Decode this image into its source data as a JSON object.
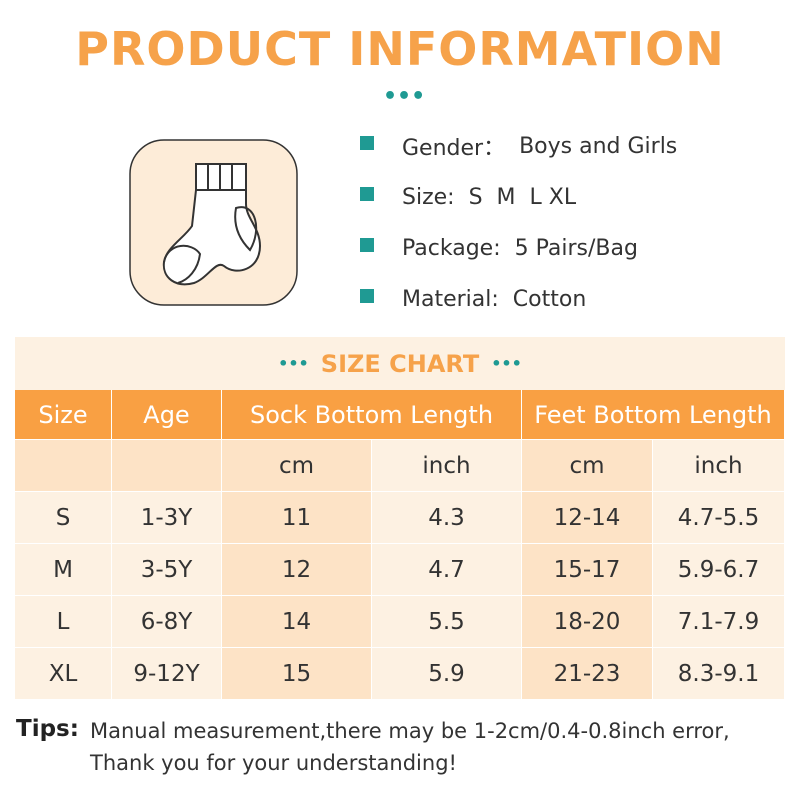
{
  "header": {
    "title": "PRODUCT INFORMATION"
  },
  "info": [
    {
      "label": "Gender：",
      "value": "Boys and Girls"
    },
    {
      "label": "Size:",
      "value": "S  M  L XL"
    },
    {
      "label": "Package:",
      "value": "5 Pairs/Bag"
    },
    {
      "label": "Material:",
      "value": "Cotton"
    }
  ],
  "table": {
    "title": "SIZE CHART",
    "headers": [
      "Size",
      "Age",
      "Sock Bottom Length",
      "Feet Bottom Length"
    ],
    "units": [
      "cm",
      "inch",
      "cm",
      "inch"
    ],
    "rows": [
      [
        "S",
        "1-3Y",
        11,
        4.3,
        "12-14",
        "4.7-5.5"
      ],
      [
        "M",
        "3-5Y",
        12,
        4.7,
        "15-17",
        "5.9-6.7"
      ],
      [
        "L",
        "6-8Y",
        14,
        5.5,
        "18-20",
        "7.1-7.9"
      ],
      [
        "XL",
        "9-12Y",
        15,
        5.9,
        "21-23",
        "8.3-9.1"
      ]
    ]
  },
  "tips": {
    "label": "Tips:",
    "lines": [
      "Manual measurement,there may be 1-2cm/0.4-0.8inch error,",
      "Thank you for your understanding!"
    ]
  }
}
